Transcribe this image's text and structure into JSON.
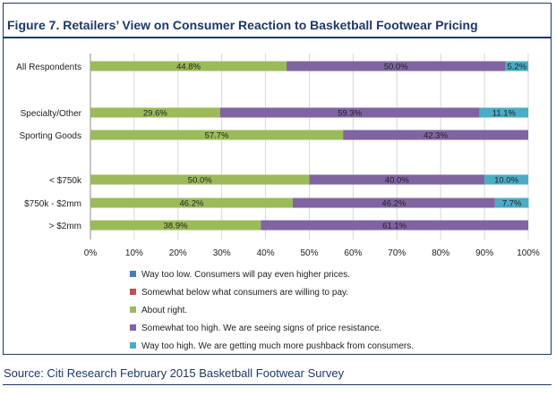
{
  "title": "Figure 7. Retailers’ View on Consumer Reaction to Basketball Footwear Pricing",
  "source": "Source: Citi Research February 2015 Basketball Footwear Survey",
  "chart_data": {
    "type": "bar",
    "orientation": "horizontal",
    "stacked": "percent",
    "categories": [
      "All Respondents",
      "Specialty/Other",
      "Sporting Goods",
      "< $750k",
      "$750k - $2mm",
      "> $2mm"
    ],
    "series": [
      {
        "name": "Way too low. Consumers will pay even higher prices.",
        "color": "#4a7ebb",
        "values": [
          0,
          0,
          0,
          0,
          0,
          0
        ],
        "labels": [
          "",
          "",
          "",
          "",
          "",
          ""
        ]
      },
      {
        "name": "Somewhat below what consumers are willing to pay.",
        "color": "#c0504d",
        "values": [
          0,
          0,
          0,
          0,
          0,
          0
        ],
        "labels": [
          "",
          "",
          "",
          "",
          "",
          ""
        ]
      },
      {
        "name": "About right.",
        "color": "#9bbb59",
        "values": [
          44.8,
          29.6,
          57.7,
          50.0,
          46.2,
          38.9
        ],
        "labels": [
          "44.8%",
          "29.6%",
          "57.7%",
          "50.0%",
          "46.2%",
          "38.9%"
        ]
      },
      {
        "name": "Somewhat too high. We are seeing signs of price resistance.",
        "color": "#8064a2",
        "values": [
          50.0,
          59.3,
          42.3,
          40.0,
          46.2,
          61.1
        ],
        "labels": [
          "50.0%",
          "59.3%",
          "42.3%",
          "40.0%",
          "46.2%",
          "61.1%"
        ]
      },
      {
        "name": "Way too high. We are getting much more pushback from consumers.",
        "color": "#4bacc6",
        "values": [
          5.2,
          11.1,
          0,
          10.0,
          7.7,
          0
        ],
        "labels": [
          "5.2%",
          "11.1%",
          "",
          "10.0%",
          "7.7%",
          ""
        ]
      }
    ],
    "xlim": [
      0,
      100
    ],
    "xticks": [
      "0%",
      "10%",
      "20%",
      "30%",
      "40%",
      "50%",
      "60%",
      "70%",
      "80%",
      "90%",
      "100%"
    ],
    "grid": "vertical",
    "legend_position": "bottom"
  }
}
